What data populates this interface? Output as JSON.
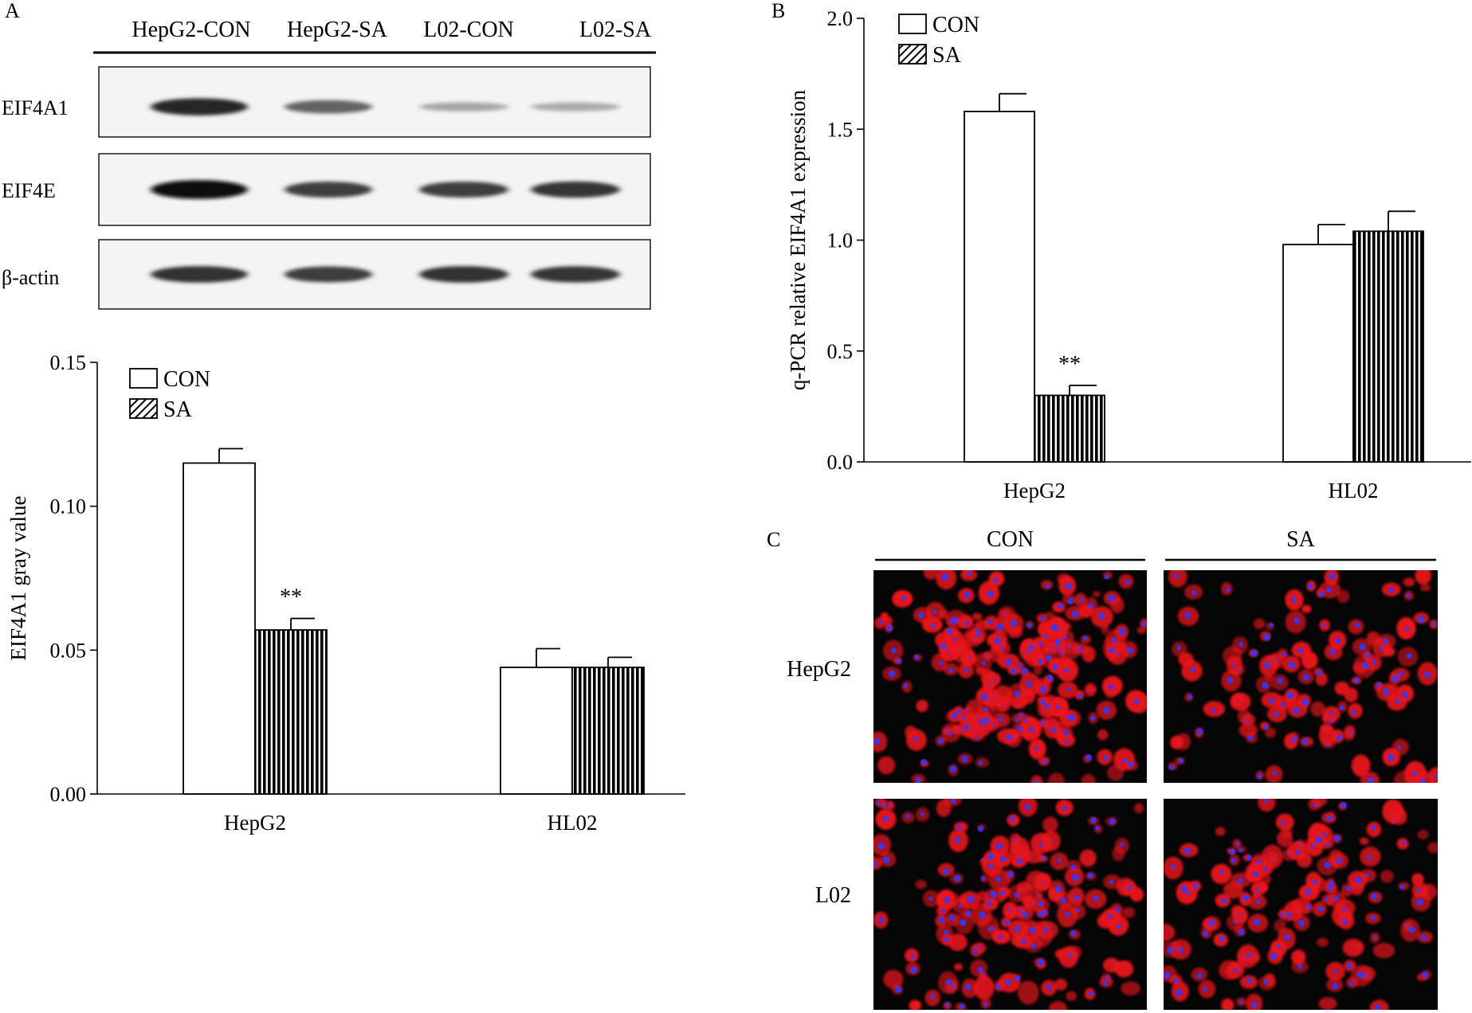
{
  "panels": {
    "A": "A",
    "B": "B",
    "C": "C"
  },
  "western_blot": {
    "lanes": [
      "HepG2-CON",
      "HepG2-SA",
      "L02-CON",
      "L02-SA"
    ],
    "proteins": [
      "EIF4A1",
      "EIF4E",
      "β-actin"
    ],
    "band_intensity": [
      [
        0.85,
        0.55,
        0.22,
        0.2
      ],
      [
        0.98,
        0.75,
        0.75,
        0.78
      ],
      [
        0.8,
        0.75,
        0.8,
        0.78
      ]
    ]
  },
  "immunofluorescence": {
    "columns": [
      "CON",
      "SA"
    ],
    "rows": [
      "HepG2",
      "L02"
    ],
    "colors": {
      "stain": "#e8141b",
      "nuclei": "#3338ff",
      "background": "#050505"
    },
    "cell_density": [
      [
        0.85,
        0.45
      ],
      [
        0.6,
        0.55
      ]
    ]
  },
  "chart_data": [
    {
      "type": "bar",
      "panel": "A",
      "categories": [
        "HepG2",
        "HL02"
      ],
      "series": [
        {
          "name": "CON",
          "values": [
            0.115,
            0.044
          ],
          "errors": [
            0.005,
            0.0065
          ],
          "fill": "open"
        },
        {
          "name": "SA",
          "values": [
            0.057,
            0.044
          ],
          "errors": [
            0.004,
            0.0035
          ],
          "fill": "hatched"
        }
      ],
      "annotations": [
        {
          "category": "HepG2",
          "series": "SA",
          "text": "**"
        }
      ],
      "ylabel": "EIF4A1 gray value",
      "ylim": [
        0,
        0.15
      ],
      "yticks": [
        "0.00",
        "0.05",
        "0.10",
        "0.15"
      ],
      "legend": "top-left",
      "grid": false
    },
    {
      "type": "bar",
      "panel": "B",
      "categories": [
        "HepG2",
        "HL02"
      ],
      "series": [
        {
          "name": "CON",
          "values": [
            1.58,
            0.98
          ],
          "errors": [
            0.08,
            0.09
          ],
          "fill": "open"
        },
        {
          "name": "SA",
          "values": [
            0.3,
            1.04
          ],
          "errors": [
            0.045,
            0.09
          ],
          "fill": "hatched"
        }
      ],
      "annotations": [
        {
          "category": "HepG2",
          "series": "SA",
          "text": "**"
        }
      ],
      "ylabel": "q-PCR relative EIF4A1 expression",
      "ylim": [
        0,
        2.0
      ],
      "yticks": [
        "0.0",
        "0.5",
        "1.0",
        "1.5",
        "2.0"
      ],
      "legend": "top-left",
      "grid": false
    }
  ]
}
